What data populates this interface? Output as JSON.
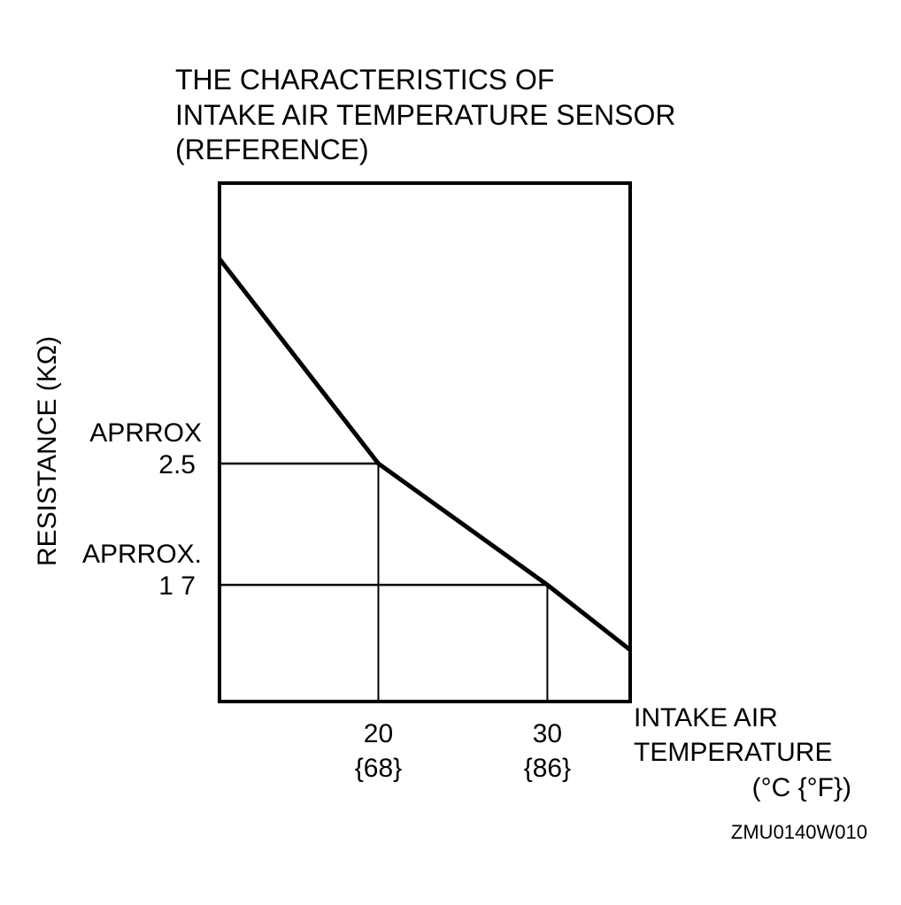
{
  "chart_data": {
    "type": "line",
    "title": [
      "THE CHARACTERISTICS OF",
      "INTAKE AIR TEMPERATURE SENSOR",
      "(REFERENCE)"
    ],
    "ylabel": "RESISTANCE (KΩ)",
    "xlabel": [
      "INTAKE AIR",
      "TEMPERATURE",
      "(°C {°F})"
    ],
    "figure_code": "ZMU0140W010",
    "x_unit": "°C",
    "y_unit": "kΩ",
    "xlim": [
      10.6,
      34.9
    ],
    "ylim": [
      0.93,
      4.35
    ],
    "x_ticks": [
      {
        "value": 20,
        "line1": "20",
        "line2": "{68}"
      },
      {
        "value": 30,
        "line1": "30",
        "line2": "{86}"
      }
    ],
    "y_ticks": [
      {
        "value": 2.5,
        "line1": "APRROX",
        "line2": "2.5"
      },
      {
        "value": 1.7,
        "line1": "APRROX.",
        "line2": "1 7"
      }
    ],
    "series": [
      {
        "x": [
          10.6,
          20,
          30,
          34.9
        ],
        "y": [
          3.85,
          2.5,
          1.7,
          1.27
        ]
      }
    ],
    "reference_points": [
      {
        "x": 20,
        "y": 2.5
      },
      {
        "x": 30,
        "y": 1.7
      }
    ],
    "grid": false,
    "colors": {
      "ink": "#000000",
      "background": "#ffffff"
    }
  }
}
